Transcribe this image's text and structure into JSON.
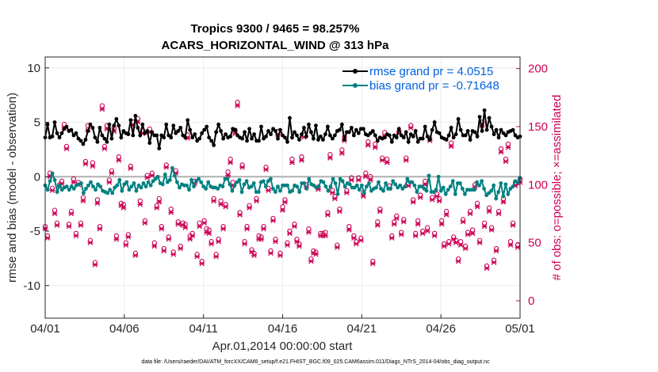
{
  "chart_data": {
    "type": "line",
    "title": "Tropics 9300 / 9465 = 98.257%",
    "subtitle": "ACARS_HORIZONTAL_WIND @ 313 hPa",
    "xlabel": "Apr.01,2014 00:00:00 start",
    "ylabel": "rmse and bias (model - observation)",
    "y2label": "# of obs: o=possible; ×=assimilated",
    "footnote": "data file: /Users/raeder/DAI/ATM_forcXX/CAM6_setup/f.e21.FHIST_BGC.f09_025.CAM6assim.011/Diags_NTrS_2014-04/obs_diag_output.nc",
    "xlim": [
      0,
      30
    ],
    "ylim": [
      -13,
      11
    ],
    "y2lim": [
      -15,
      210
    ],
    "x_ticks": [
      0,
      5,
      10,
      15,
      20,
      25,
      30
    ],
    "x_tick_labels": [
      "04/01",
      "04/06",
      "04/11",
      "04/16",
      "04/21",
      "04/26",
      "05/01"
    ],
    "y_ticks": [
      10,
      5,
      0,
      -5,
      -10
    ],
    "y_tick_labels": [
      "10",
      "5",
      "0",
      "-5",
      "-10"
    ],
    "y2_ticks": [
      0,
      50,
      100,
      150,
      200
    ],
    "y2_tick_labels": [
      "0",
      "50",
      "100",
      "150",
      "200"
    ],
    "series": [
      {
        "name": "rmse grand pr = 4.0515",
        "color": "#000000",
        "marker": "dot",
        "values": [
          3.6,
          4.8,
          3.6,
          3.7,
          5.0,
          4.0,
          3.6,
          4.0,
          4.4,
          4.6,
          4.2,
          4.3,
          3.8,
          4.0,
          3.5,
          3.3,
          3.0,
          3.4,
          4.2,
          4.8,
          4.5,
          3.6,
          3.2,
          4.5,
          3.8,
          3.5,
          3.2,
          4.8,
          3.5,
          4.7,
          5.3,
          4.7,
          3.6,
          4.2,
          4.0,
          3.9,
          5.2,
          3.8,
          5.6,
          4.5,
          3.8,
          4.8,
          4.0,
          4.2,
          3.1,
          4.1,
          3.8,
          3.8,
          2.6,
          3.8,
          3.6,
          4.8,
          3.8,
          3.6,
          4.7,
          4.0,
          4.2,
          4.5,
          3.8,
          3.6,
          5.2,
          4.3,
          3.6,
          3.9,
          3.3,
          3.5,
          4.0,
          4.3,
          4.6,
          3.6,
          3.3,
          2.9,
          4.1,
          4.8,
          4.2,
          3.5,
          3.9,
          3.6,
          3.7,
          4.4,
          4.3,
          3.8,
          3.6,
          3.5,
          4.1,
          3.3,
          4.4,
          3.5,
          3.9,
          3.3,
          3.3,
          4.6,
          3.5,
          3.7,
          4.2,
          3.9,
          4.4,
          4.2,
          3.5,
          4.3,
          3.8,
          3.6,
          3.2,
          5.4,
          3.6,
          4.1,
          3.8,
          3.4,
          3.9,
          4.5,
          3.7,
          4.8,
          4.1,
          3.5,
          4.7,
          3.4,
          3.7,
          3.4,
          3.9,
          4.6,
          3.8,
          3.5,
          3.8,
          4.2,
          4.3,
          4.8,
          3.4,
          4.1,
          4.1,
          4.5,
          3.8,
          4.3,
          4.0,
          4.4,
          4.4,
          3.9,
          3.8,
          4.0,
          4.2,
          3.8,
          3.3,
          3.6,
          3.5,
          3.6,
          3.9,
          3.8,
          3.2,
          3.8,
          3.6,
          4.4,
          3.8,
          3.6,
          4.1,
          3.2,
          3.9,
          3.7,
          4.2,
          3.2,
          3.5,
          3.5,
          4.6,
          3.7,
          3.4,
          4.3,
          5.0,
          4.1,
          4.0,
          3.6,
          3.5,
          3.4,
          3.8,
          4.5,
          3.6,
          3.9,
          5.3,
          4.3,
          3.8,
          3.8,
          4.2,
          3.4,
          4.2,
          4.1,
          3.7,
          5.5,
          4.2,
          6.1,
          4.3,
          5.4,
          4.6,
          3.9,
          4.3,
          3.6,
          4.3,
          4.0,
          3.8,
          4.1,
          4.2,
          4.3,
          3.8,
          3.6,
          3.7
        ]
      },
      {
        "name": "bias grand pr = -0.71648",
        "color": "#008080",
        "marker": "dot",
        "values": [
          -0.8,
          -1.2,
          -0.4,
          0.3,
          -0.3,
          -1.4,
          -0.8,
          -1.2,
          -1.0,
          -0.9,
          -1.2,
          -0.9,
          -1.1,
          -0.8,
          -0.7,
          -0.6,
          -1.5,
          -1.1,
          -0.8,
          -0.5,
          -0.9,
          -1.2,
          -0.7,
          -0.9,
          -1.3,
          -1.4,
          -1.5,
          -1.2,
          -1.5,
          -1.0,
          -0.8,
          -0.3,
          -1.3,
          -0.7,
          -0.5,
          -1.2,
          -0.9,
          -0.6,
          -1.3,
          -0.8,
          -1.0,
          -0.6,
          -0.9,
          -0.5,
          -0.8,
          -0.4,
          -0.2,
          0.0,
          -0.6,
          -0.7,
          0.2,
          -0.5,
          -0.3,
          0.8,
          0.1,
          -0.5,
          -1.0,
          -0.7,
          -0.8,
          -0.8,
          -1.2,
          -0.3,
          -0.9,
          -0.4,
          -0.2,
          -0.5,
          -0.9,
          -1.1,
          -0.5,
          -0.9,
          -1.0,
          -1.0,
          -1.1,
          -0.8,
          -0.9,
          -0.2,
          -0.2,
          -0.7,
          -1.3,
          -0.8,
          -0.5,
          -0.3,
          -1.4,
          -0.7,
          -0.4,
          -1.0,
          -0.9,
          -0.6,
          -1.4,
          -1.4,
          -0.5,
          -0.4,
          -0.9,
          -0.4,
          -0.2,
          -1.1,
          -1.4,
          -0.9,
          -1.3,
          -0.8,
          -0.8,
          -0.8,
          -1.4,
          -1.3,
          -0.8,
          -0.9,
          -1.4,
          -0.6,
          -0.6,
          -1.1,
          -0.2,
          -0.7,
          -0.8,
          -1.0,
          -0.9,
          -0.4,
          -0.5,
          -0.9,
          -1.3,
          -0.9,
          -0.2,
          -0.6,
          -1.6,
          -0.2,
          -0.4,
          -0.9,
          -0.6,
          -0.7,
          -1.0,
          -1.0,
          -0.8,
          -1.2,
          -0.8,
          -1.5,
          -0.9,
          -0.6,
          -1.3,
          -1.1,
          -1.0,
          -0.5,
          -1.1,
          -1.3,
          -0.6,
          -1.1,
          -1.1,
          -0.4,
          -0.7,
          -1.0,
          -0.8,
          -1.1,
          -0.9,
          -0.2,
          -0.5,
          -0.5,
          -0.8,
          -1.4,
          -0.9,
          -0.9,
          -1.1,
          -1.3,
          0.1,
          -1.4,
          -1.4,
          -1.2,
          0.0,
          -1.3,
          -1.0,
          -1.6,
          -1.2,
          -0.9,
          -0.4,
          -1.6,
          -0.6,
          -0.6,
          -1.1,
          -1.6,
          -1.2,
          -1.2,
          -1.2,
          -1.2,
          -0.5,
          -0.8,
          -0.4,
          -1.1,
          -1.7,
          -1.5,
          -1.3,
          -0.8,
          -2.0,
          -1.4,
          -0.6,
          -1.8,
          -0.7,
          -1.6,
          -1.1,
          -0.9,
          -0.4,
          -0.5,
          -0.1
        ]
      }
    ],
    "obs_counts": {
      "color": "#cc0055",
      "axis": "right",
      "possible": [
        64,
        56,
        110,
        97,
        78,
        67,
        100,
        103,
        152,
        133,
        66,
        77,
        105,
        58,
        102,
        67,
        89,
        120,
        151,
        52,
        119,
        33,
        87,
        64,
        168,
        133,
        151,
        104,
        112,
        149,
        56,
        124,
        84,
        83,
        50,
        57,
        116,
        154,
        41,
        157,
        86,
        147,
        69,
        108,
        148,
        110,
        50,
        82,
        88,
        64,
        45,
        117,
        55,
        79,
        42,
        112,
        68,
        47,
        67,
        66,
        143,
        56,
        58,
        103,
        40,
        67,
        34,
        69,
        62,
        61,
        51,
        88,
        40,
        53,
        86,
        64,
        83,
        111,
        122,
        102,
        147,
        171,
        76,
        117,
        51,
        64,
        82,
        44,
        41,
        88,
        56,
        55,
        64,
        115,
        97,
        43,
        71,
        53,
        146,
        41,
        81,
        87,
        50,
        60,
        122,
        66,
        53,
        49,
        124,
        143,
        100,
        62,
        36,
        43,
        42,
        98,
        58,
        58,
        59,
        76,
        126,
        95,
        90,
        48,
        79,
        130,
        141,
        95,
        64,
        106,
        56,
        51,
        106,
        54,
        93,
        110,
        137,
        107,
        34,
        135,
        68,
        79,
        123,
        145,
        122,
        99,
        56,
        68,
        73,
        146,
        59,
        70,
        123,
        101,
        151,
        87,
        58,
        69,
        91,
        60,
        103,
        63,
        140,
        89,
        58,
        92,
        88,
        69,
        49,
        77,
        51,
        136,
        55,
        52,
        36,
        51,
        70,
        47,
        59,
        77,
        61,
        100,
        84,
        52,
        154,
        67,
        30,
        80,
        63,
        35,
        45,
        77,
        131,
        88,
        122,
        135,
        51,
        67,
        102,
        48,
        105
      ],
      "assimilated": [
        62,
        54,
        107,
        95,
        75,
        65,
        98,
        101,
        149,
        131,
        64,
        75,
        102,
        56,
        100,
        65,
        86,
        118,
        147,
        50,
        116,
        31,
        84,
        62,
        165,
        131,
        148,
        102,
        110,
        146,
        53,
        121,
        82,
        80,
        48,
        55,
        114,
        151,
        39,
        154,
        83,
        144,
        67,
        106,
        145,
        108,
        47,
        80,
        85,
        62,
        43,
        115,
        53,
        76,
        40,
        110,
        66,
        45,
        65,
        63,
        140,
        53,
        56,
        101,
        38,
        64,
        32,
        67,
        59,
        58,
        49,
        86,
        38,
        51,
        83,
        62,
        81,
        108,
        119,
        99,
        144,
        168,
        74,
        115,
        49,
        62,
        80,
        42,
        39,
        86,
        53,
        53,
        62,
        113,
        95,
        41,
        69,
        51,
        143,
        39,
        78,
        85,
        48,
        58,
        119,
        64,
        51,
        47,
        121,
        141,
        98,
        59,
        34,
        41,
        40,
        96,
        56,
        56,
        56,
        74,
        123,
        93,
        88,
        46,
        77,
        127,
        138,
        93,
        61,
        104,
        54,
        49,
        104,
        52,
        90,
        107,
        134,
        104,
        32,
        132,
        65,
        77,
        121,
        142,
        119,
        97,
        54,
        66,
        71,
        144,
        57,
        68,
        121,
        99,
        149,
        85,
        56,
        66,
        89,
        58,
        100,
        60,
        138,
        87,
        56,
        90,
        86,
        66,
        47,
        74,
        49,
        133,
        53,
        50,
        34,
        48,
        68,
        45,
        57,
        75,
        58,
        98,
        81,
        50,
        151,
        64,
        28,
        77,
        61,
        33,
        43,
        75,
        128,
        85,
        120,
        132,
        48,
        65,
        99,
        46,
        102
      ]
    }
  }
}
